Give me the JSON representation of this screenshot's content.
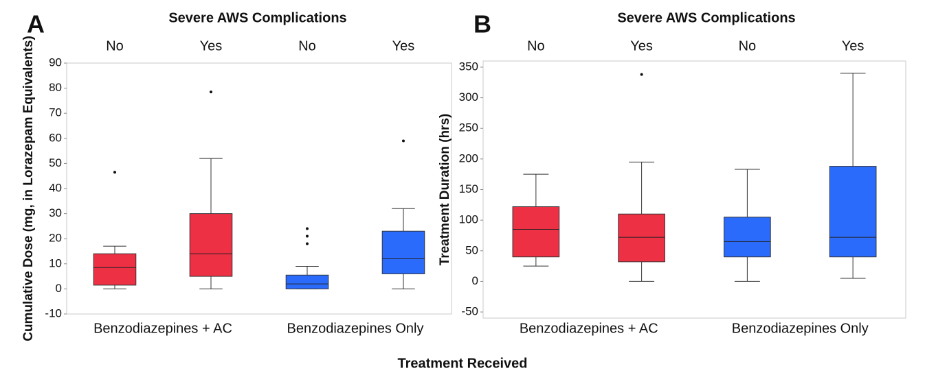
{
  "xlabel": "Treatment Received",
  "chart_data": [
    {
      "type": "box",
      "panel_label": "A",
      "title": "Severe AWS Complications",
      "ylabel": "Cumulative Dose (mg, in Lorazepam Equivalents)",
      "ylim": [
        -10,
        90
      ],
      "yticks": [
        -10,
        0,
        10,
        20,
        30,
        40,
        50,
        60,
        70,
        80,
        90
      ],
      "series": [
        {
          "name": "Benzodiazepines + AC",
          "color": "#ee3045",
          "categories": [
            "No",
            "Yes"
          ],
          "boxes": [
            {
              "low": 0,
              "q1": 1.5,
              "median": 8.5,
              "q3": 14,
              "high": 17,
              "outliers": [
                46.5
              ]
            },
            {
              "low": 0,
              "q1": 5,
              "median": 14,
              "q3": 30,
              "high": 52,
              "outliers": [
                78.5
              ]
            }
          ]
        },
        {
          "name": "Benzodiazepines Only",
          "color": "#2b6bfb",
          "categories": [
            "No",
            "Yes"
          ],
          "boxes": [
            {
              "low": 0,
              "q1": 0,
              "median": 2,
              "q3": 5.5,
              "high": 9,
              "outliers": [
                18,
                21,
                24
              ]
            },
            {
              "low": 0,
              "q1": 6,
              "median": 12,
              "q3": 23,
              "high": 32,
              "outliers": [
                59
              ]
            }
          ]
        }
      ]
    },
    {
      "type": "box",
      "panel_label": "B",
      "title": "Severe AWS Complications",
      "ylabel": "Treatment Duration (hrs)",
      "ylim": [
        -60,
        360
      ],
      "yticks": [
        -50,
        0,
        50,
        100,
        150,
        200,
        250,
        300,
        350
      ],
      "series": [
        {
          "name": "Benzodiazepines + AC",
          "color": "#ee3045",
          "categories": [
            "No",
            "Yes"
          ],
          "boxes": [
            {
              "low": 25,
              "q1": 40,
              "median": 85,
              "q3": 122,
              "high": 175,
              "outliers": []
            },
            {
              "low": 0,
              "q1": 32,
              "median": 72,
              "q3": 110,
              "high": 195,
              "outliers": [
                338
              ]
            }
          ]
        },
        {
          "name": "Benzodiazepines Only",
          "color": "#2b6bfb",
          "categories": [
            "No",
            "Yes"
          ],
          "boxes": [
            {
              "low": 0,
              "q1": 40,
              "median": 65,
              "q3": 105,
              "high": 183,
              "outliers": []
            },
            {
              "low": 5,
              "q1": 40,
              "median": 72,
              "q3": 188,
              "high": 340,
              "outliers": []
            }
          ]
        }
      ]
    }
  ]
}
